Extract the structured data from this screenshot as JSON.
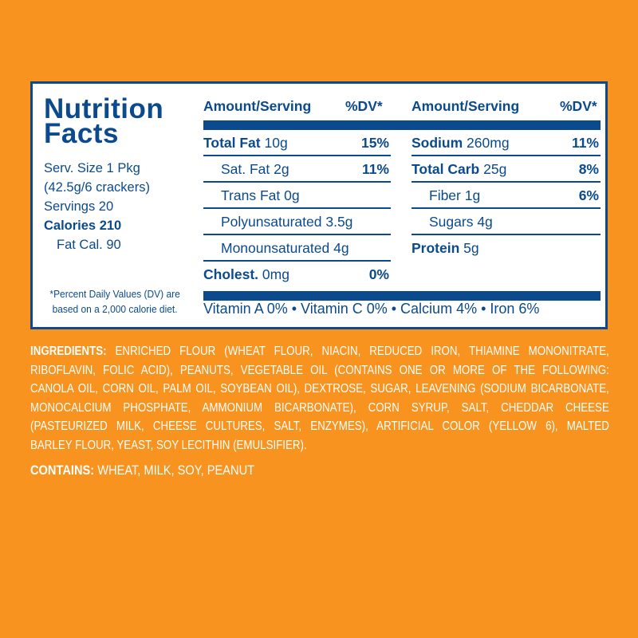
{
  "label": {
    "title_line1": "Nutrition",
    "title_line2": "Facts",
    "serving_size": "Serv. Size 1 Pkg",
    "serving_detail": "(42.5g/6 crackers)",
    "servings": "Servings 20",
    "calories_label": "Calories 210",
    "fat_calories": "Fat Cal. 90",
    "footnote_line1": "*Percent Daily Values (DV) are",
    "footnote_line2": "based on a 2,000 calorie diet.",
    "headers": {
      "amount": "Amount/Serving",
      "dv": "%DV*"
    },
    "left_rows": [
      {
        "name": "Total Fat",
        "amount": "10g",
        "dv": "15%",
        "bold": true
      },
      {
        "name": "Sat. Fat",
        "amount": "2g",
        "dv": "11%",
        "bold": false
      },
      {
        "name": "Trans Fat",
        "amount": "0g",
        "dv": "",
        "bold": false
      },
      {
        "name": "Polyunsaturated",
        "amount": "3.5g",
        "dv": "",
        "bold": false
      },
      {
        "name": "Monounsaturated",
        "amount": "4g",
        "dv": "",
        "bold": false
      },
      {
        "name": "Cholest.",
        "amount": "0mg",
        "dv": "0%",
        "bold": true
      }
    ],
    "right_rows": [
      {
        "name": "Sodium",
        "amount": "260mg",
        "dv": "11%",
        "bold": true
      },
      {
        "name": "Total Carb",
        "amount": "25g",
        "dv": "8%",
        "bold": true
      },
      {
        "name": "Fiber",
        "amount": "1g",
        "dv": "6%",
        "bold": false
      },
      {
        "name": "Sugars",
        "amount": "4g",
        "dv": "",
        "bold": false
      },
      {
        "name": "Protein",
        "amount": "5g",
        "dv": "",
        "bold": true
      }
    ],
    "vitamins": "Vitamin A 0% • Vitamin C 0% • Calcium 4% • Iron 6%"
  },
  "ingredients": {
    "label": "INGREDIENTS:",
    "lines": [
      "ENRICHED FLOUR (WHEAT FLOUR, NIACIN, REDUCED IRON, THIAMINE MONONITRATE,",
      "RIBOFLAVIN, FOLIC ACID), PEANUTS, VEGETABLE OIL (CONTAINS ONE OR MORE OF THE FOLLOWING:",
      "CANOLA OIL, CORN OIL, PALM OIL, SOYBEAN OIL), DEXTROSE, SUGAR, LEAVENING (SODIUM BICARBONATE,",
      "MONOCALCIUM PHOSPHATE, AMMONIUM BICARBONATE), CORN SYRUP, SALT, CHEDDAR CHEESE",
      "(PASTEURIZED MILK, CHEESE CULTURES, SALT, ENZYMES), ARTIFICIAL COLOR (YELLOW 6), MALTED",
      "BARLEY FLOUR, YEAST, SOY LECITHIN (EMULSIFIER)."
    ]
  },
  "contains": {
    "label": "CONTAINS:",
    "text": "WHEAT, MILK, SOY, PEANUT"
  },
  "colors": {
    "background": "#f7931e",
    "label_blue": "#0b4a8c",
    "text_white": "#ffffff"
  }
}
